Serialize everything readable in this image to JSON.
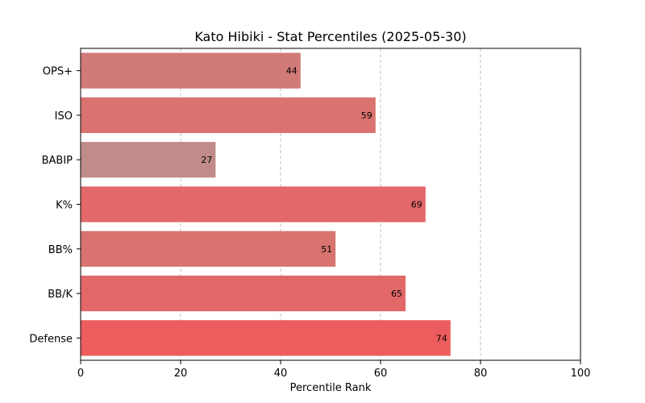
{
  "chart_data": {
    "type": "bar",
    "orientation": "horizontal",
    "title": "Kato Hibiki - Stat Percentiles (2025-05-30)",
    "xlabel": "Percentile Rank",
    "ylabel": "",
    "xlim": [
      0,
      100
    ],
    "xticks": [
      0,
      20,
      40,
      60,
      80,
      100
    ],
    "grid": "vertical dashed",
    "categories": [
      "OPS+",
      "ISO",
      "BABIP",
      "K%",
      "BB%",
      "BB/K",
      "Defense"
    ],
    "values": [
      44,
      59,
      27,
      69,
      51,
      65,
      74
    ],
    "colors": [
      "#d17b78",
      "#da726f",
      "#c08b89",
      "#e2686a",
      "#d8736f",
      "#e26868",
      "#ee5d5d"
    ]
  }
}
